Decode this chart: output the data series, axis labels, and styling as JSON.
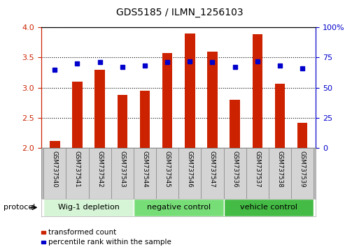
{
  "title": "GDS5185 / ILMN_1256103",
  "samples": [
    "GSM737540",
    "GSM737541",
    "GSM737542",
    "GSM737543",
    "GSM737544",
    "GSM737545",
    "GSM737546",
    "GSM737547",
    "GSM737536",
    "GSM737537",
    "GSM737538",
    "GSM737539"
  ],
  "bar_values": [
    2.12,
    3.1,
    3.3,
    2.88,
    2.95,
    3.57,
    3.9,
    3.6,
    2.8,
    3.88,
    3.06,
    2.42
  ],
  "dot_values": [
    65,
    70,
    71,
    67,
    68,
    71,
    72,
    71,
    67,
    72,
    68,
    66
  ],
  "bar_color": "#cc2200",
  "dot_color": "#0000cc",
  "ylim_left": [
    2.0,
    4.0
  ],
  "ylim_right": [
    0,
    100
  ],
  "yticks_left": [
    2.0,
    2.5,
    3.0,
    3.5,
    4.0
  ],
  "yticks_right": [
    0,
    25,
    50,
    75,
    100
  ],
  "ytick_labels_right": [
    "0",
    "25",
    "50",
    "75",
    "100%"
  ],
  "groups": [
    {
      "label": "Wig-1 depletion",
      "start": 0,
      "end": 4,
      "color": "#d6f5d6"
    },
    {
      "label": "negative control",
      "start": 4,
      "end": 8,
      "color": "#77dd77"
    },
    {
      "label": "vehicle control",
      "start": 8,
      "end": 12,
      "color": "#44bb44"
    }
  ],
  "protocol_label": "protocol",
  "legend_items": [
    {
      "label": "transformed count",
      "color": "#cc2200"
    },
    {
      "label": "percentile rank within the sample",
      "color": "#0000cc"
    }
  ],
  "bar_width": 0.45,
  "tick_label_color_left": "#cc2200",
  "tick_label_color_right": "#0000cc",
  "background_color": "#ffffff",
  "plot_background": "#ffffff",
  "xtick_box_color": "#cccccc",
  "spine_color": "#000000"
}
